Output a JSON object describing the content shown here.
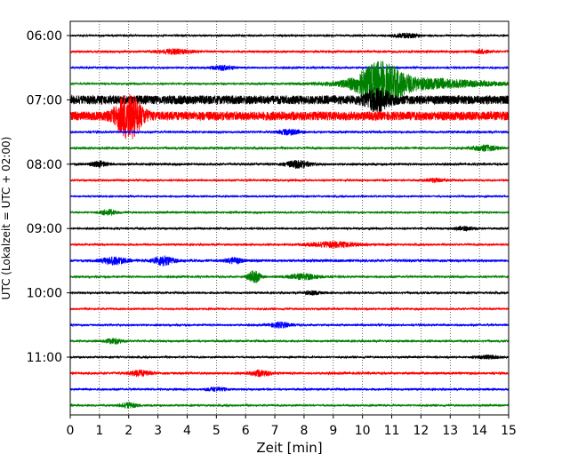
{
  "chart_data": {
    "type": "line",
    "title": "",
    "xlabel": "Zeit  [min]",
    "ylabel": "UTC (Lokalzeit = UTC + 02:00)",
    "xlim": [
      0,
      15
    ],
    "x_ticks": [
      0,
      1,
      2,
      3,
      4,
      5,
      6,
      7,
      8,
      9,
      10,
      11,
      12,
      13,
      14,
      15
    ],
    "x_tick_labels": [
      "0",
      "1",
      "2",
      "3",
      "4",
      "5",
      "6",
      "7",
      "8",
      "9",
      "10",
      "11",
      "12",
      "13",
      "14",
      "15"
    ],
    "y_tick_labels": [
      "06:00",
      "07:00",
      "08:00",
      "09:00",
      "10:00",
      "11:00"
    ],
    "y_tick_trace_index": [
      0,
      4,
      8,
      12,
      16,
      20
    ],
    "grid": "vertical-dotted",
    "minutes_per_trace": 15,
    "colors": [
      "#000000",
      "#ff0000",
      "#0000ff",
      "#008000"
    ],
    "traces": [
      {
        "start": "06:00",
        "color": "#000000",
        "noise": 1.0,
        "events": [
          {
            "t": 11.5,
            "amp": 2.5,
            "dur": 0.6
          }
        ]
      },
      {
        "start": "06:15",
        "color": "#ff0000",
        "noise": 1.2,
        "events": [
          {
            "t": 3.6,
            "amp": 2.5,
            "dur": 0.8
          },
          {
            "t": 14.1,
            "amp": 2.0,
            "dur": 0.4
          }
        ]
      },
      {
        "start": "06:30",
        "color": "#0000ff",
        "noise": 1.1,
        "events": [
          {
            "t": 5.2,
            "amp": 2.5,
            "dur": 0.5
          }
        ]
      },
      {
        "start": "06:45",
        "color": "#008000",
        "noise": 1.0,
        "events": [
          {
            "t": 10.6,
            "amp": 20,
            "dur": 1.1
          },
          {
            "t": 11.8,
            "amp": 6,
            "dur": 3.5
          }
        ]
      },
      {
        "start": "07:00",
        "color": "#000000",
        "noise": 5.0,
        "events": [
          {
            "t": 10.5,
            "amp": 10,
            "dur": 0.6
          }
        ]
      },
      {
        "start": "07:15",
        "color": "#ff0000",
        "noise": 5.0,
        "events": [
          {
            "t": 2.0,
            "amp": 24,
            "dur": 0.6
          }
        ]
      },
      {
        "start": "07:30",
        "color": "#0000ff",
        "noise": 1.2,
        "events": [
          {
            "t": 7.5,
            "amp": 3,
            "dur": 0.5
          }
        ]
      },
      {
        "start": "07:45",
        "color": "#008000",
        "noise": 1.2,
        "events": [
          {
            "t": 14.2,
            "amp": 3,
            "dur": 0.6
          }
        ]
      },
      {
        "start": "08:00",
        "color": "#000000",
        "noise": 1.2,
        "events": [
          {
            "t": 1.0,
            "amp": 3,
            "dur": 0.4
          },
          {
            "t": 7.8,
            "amp": 4,
            "dur": 0.6
          }
        ]
      },
      {
        "start": "08:15",
        "color": "#ff0000",
        "noise": 1.0,
        "events": [
          {
            "t": 12.5,
            "amp": 2,
            "dur": 0.5
          }
        ]
      },
      {
        "start": "08:30",
        "color": "#0000ff",
        "noise": 0.9,
        "events": []
      },
      {
        "start": "08:45",
        "color": "#008000",
        "noise": 1.0,
        "events": [
          {
            "t": 1.3,
            "amp": 3,
            "dur": 0.4
          }
        ]
      },
      {
        "start": "09:00",
        "color": "#000000",
        "noise": 1.0,
        "events": [
          {
            "t": 13.5,
            "amp": 2,
            "dur": 0.5
          }
        ]
      },
      {
        "start": "09:15",
        "color": "#ff0000",
        "noise": 1.1,
        "events": [
          {
            "t": 9.0,
            "amp": 3,
            "dur": 1.2
          }
        ]
      },
      {
        "start": "09:30",
        "color": "#0000ff",
        "noise": 1.4,
        "events": [
          {
            "t": 1.5,
            "amp": 4,
            "dur": 0.6
          },
          {
            "t": 3.2,
            "amp": 5,
            "dur": 0.5
          },
          {
            "t": 5.6,
            "amp": 3,
            "dur": 0.4
          }
        ]
      },
      {
        "start": "09:45",
        "color": "#008000",
        "noise": 1.1,
        "events": [
          {
            "t": 6.3,
            "amp": 7,
            "dur": 0.3
          },
          {
            "t": 8.0,
            "amp": 3,
            "dur": 0.8
          }
        ]
      },
      {
        "start": "10:00",
        "color": "#000000",
        "noise": 1.1,
        "events": [
          {
            "t": 8.3,
            "amp": 2,
            "dur": 0.4
          }
        ]
      },
      {
        "start": "10:15",
        "color": "#ff0000",
        "noise": 1.0,
        "events": []
      },
      {
        "start": "10:30",
        "color": "#0000ff",
        "noise": 1.1,
        "events": [
          {
            "t": 7.2,
            "amp": 3,
            "dur": 0.5
          }
        ]
      },
      {
        "start": "10:45",
        "color": "#008000",
        "noise": 1.1,
        "events": [
          {
            "t": 1.5,
            "amp": 3,
            "dur": 0.4
          }
        ]
      },
      {
        "start": "11:00",
        "color": "#000000",
        "noise": 1.0,
        "events": [
          {
            "t": 14.3,
            "amp": 2,
            "dur": 0.5
          }
        ]
      },
      {
        "start": "11:15",
        "color": "#ff0000",
        "noise": 1.3,
        "events": [
          {
            "t": 2.4,
            "amp": 3,
            "dur": 0.5
          },
          {
            "t": 6.5,
            "amp": 3,
            "dur": 0.5
          }
        ]
      },
      {
        "start": "11:30",
        "color": "#0000ff",
        "noise": 1.1,
        "events": [
          {
            "t": 5.0,
            "amp": 2,
            "dur": 0.5
          }
        ]
      },
      {
        "start": "11:45",
        "color": "#008000",
        "noise": 1.0,
        "events": [
          {
            "t": 2.0,
            "amp": 3,
            "dur": 0.4
          }
        ]
      }
    ]
  }
}
